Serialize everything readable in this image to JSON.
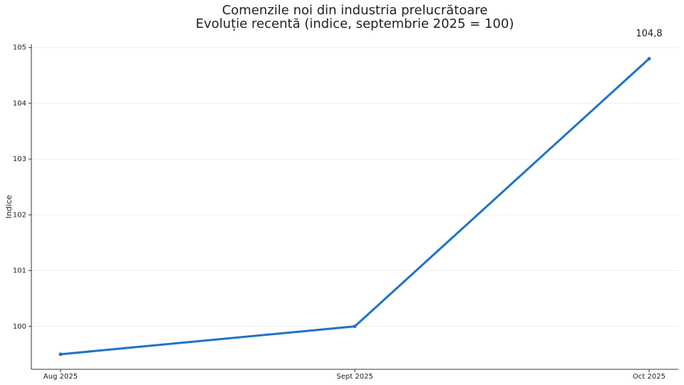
{
  "chart_data": {
    "type": "line",
    "title": "Comenzile noi din industria prelucrătoare",
    "subtitle": "Evoluție recentă (indice, septembrie 2025 = 100)",
    "y_label": "Indice",
    "categories": [
      "Aug 2025",
      "Sept 2025",
      "Oct 2025"
    ],
    "series": [
      {
        "name": "Indice",
        "color": "#1f73c4",
        "values": [
          99.5,
          100,
          104.8
        ],
        "value_labels": [
          null,
          null,
          "104,8"
        ]
      }
    ],
    "ylim": [
      99.23,
      105.06
    ],
    "yticks": [
      100,
      101,
      102,
      103,
      104,
      105
    ],
    "grid": true
  }
}
